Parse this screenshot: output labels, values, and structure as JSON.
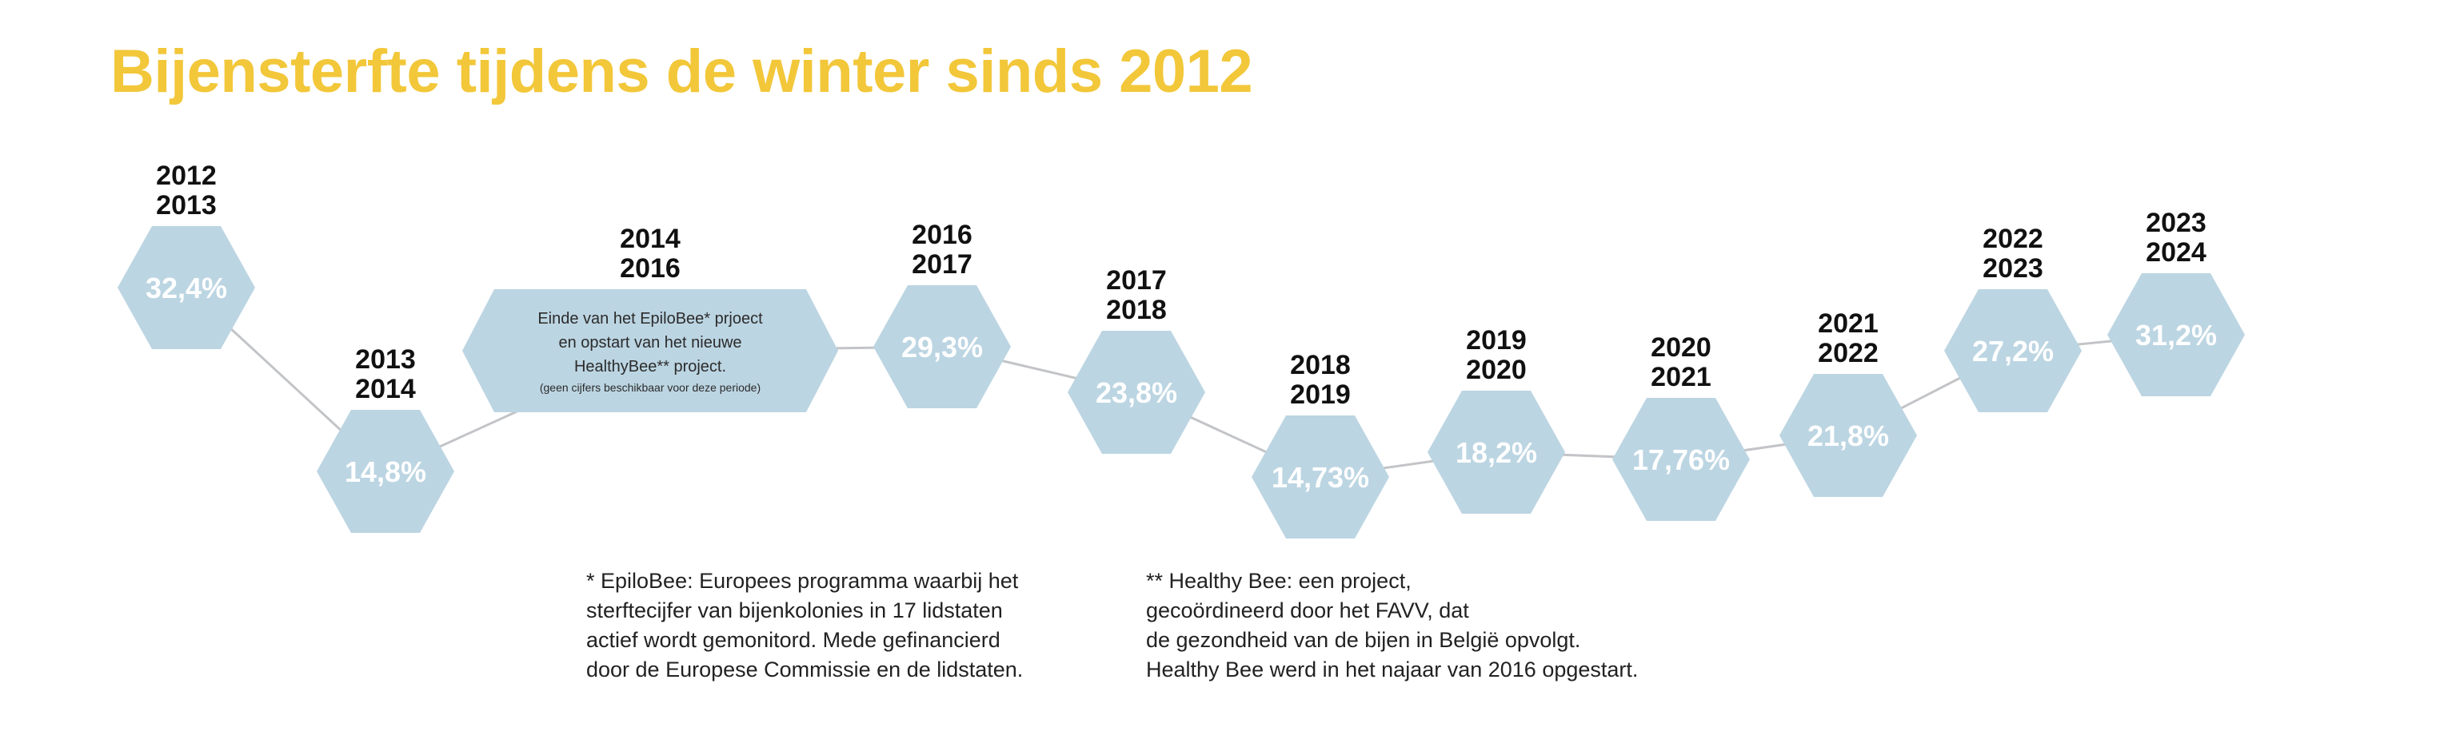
{
  "colors": {
    "title": "#f2c739",
    "hexagon": "#bcd5e2",
    "connector": "#c2c4c7",
    "value_text": "#ffffff",
    "year_text": "#111111"
  },
  "chart_data": {
    "type": "line",
    "title": "Bijensterfte tijdens de winter sinds 2012",
    "xlabel": "",
    "ylabel": "",
    "unit": "%",
    "points": [
      {
        "period": [
          "2012",
          "2013"
        ],
        "value": 32.4,
        "label": "32,4%"
      },
      {
        "period": [
          "2013",
          "2014"
        ],
        "value": 14.8,
        "label": "14,8%"
      },
      {
        "period": [
          "2014",
          "2016"
        ],
        "value": null,
        "label": null,
        "note": [
          "Einde van het EpiloBee* prjoect",
          "en opstart van het nieuwe",
          "HealthyBee** project."
        ],
        "note_small": "(geen cijfers beschikbaar voor deze periode)"
      },
      {
        "period": [
          "2016",
          "2017"
        ],
        "value": 29.3,
        "label": "29,3%"
      },
      {
        "period": [
          "2017",
          "2018"
        ],
        "value": 23.8,
        "label": "23,8%"
      },
      {
        "period": [
          "2018",
          "2019"
        ],
        "value": 14.73,
        "label": "14,73%"
      },
      {
        "period": [
          "2019",
          "2020"
        ],
        "value": 18.2,
        "label": "18,2%"
      },
      {
        "period": [
          "2020",
          "2021"
        ],
        "value": 17.76,
        "label": "17,76%"
      },
      {
        "period": [
          "2021",
          "2022"
        ],
        "value": 21.8,
        "label": "21,8%"
      },
      {
        "period": [
          "2022",
          "2023"
        ],
        "value": 27.2,
        "label": "27,2%"
      },
      {
        "period": [
          "2023",
          "2024"
        ],
        "value": 31.2,
        "label": "31,2%"
      }
    ]
  },
  "footnotes": {
    "epilobee": [
      "* EpiloBee: Europees programma waarbij het",
      "sterftecijfer van bijenkolonies in 17 lidstaten",
      "actief wordt gemonitord. Mede gefinancierd",
      "door de Europese Commissie en de lidstaten."
    ],
    "healthybee": [
      "** Healthy Bee: een project,",
      "gecoördineerd door het FAVV, dat",
      "de gezondheid van de bijen in België opvolgt.",
      "Healthy Bee werd in het najaar van 2016 opgestart."
    ]
  }
}
